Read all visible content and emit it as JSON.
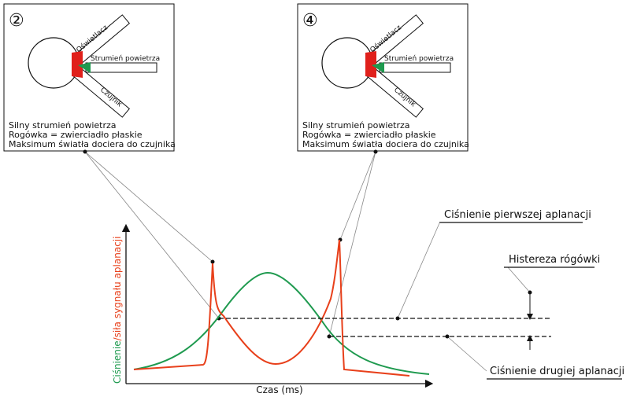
{
  "panels": [
    {
      "number": "②",
      "illuminator": "Oświetlacz",
      "airflow": "Strumień powietrza",
      "sensor": "Czujnik",
      "lines": [
        "Silny strumień powietrza",
        "Rogówka = zwierciadło płaskie",
        "Maksimum światła dociera do czujnika"
      ]
    },
    {
      "number": "④",
      "illuminator": "Oświetlacz",
      "airflow": "Strumień powietrza",
      "sensor": "Czujnik",
      "lines": [
        "Silny strumień powietrza",
        "Rogówka = zwierciadło płaskie",
        "Maksimum światła dociera do czujnika"
      ]
    }
  ],
  "axes": {
    "y_label_pressure": "Ciśnienie",
    "y_label_signal": "/siła sygnału aplanacji",
    "x_label": "Czas (ms)"
  },
  "annotations": {
    "first": "Ciśnienie pierwszej aplanacji",
    "hysteresis": "Histereza rógówki",
    "second": "Ciśnienie drugiej aplanacji"
  }
}
